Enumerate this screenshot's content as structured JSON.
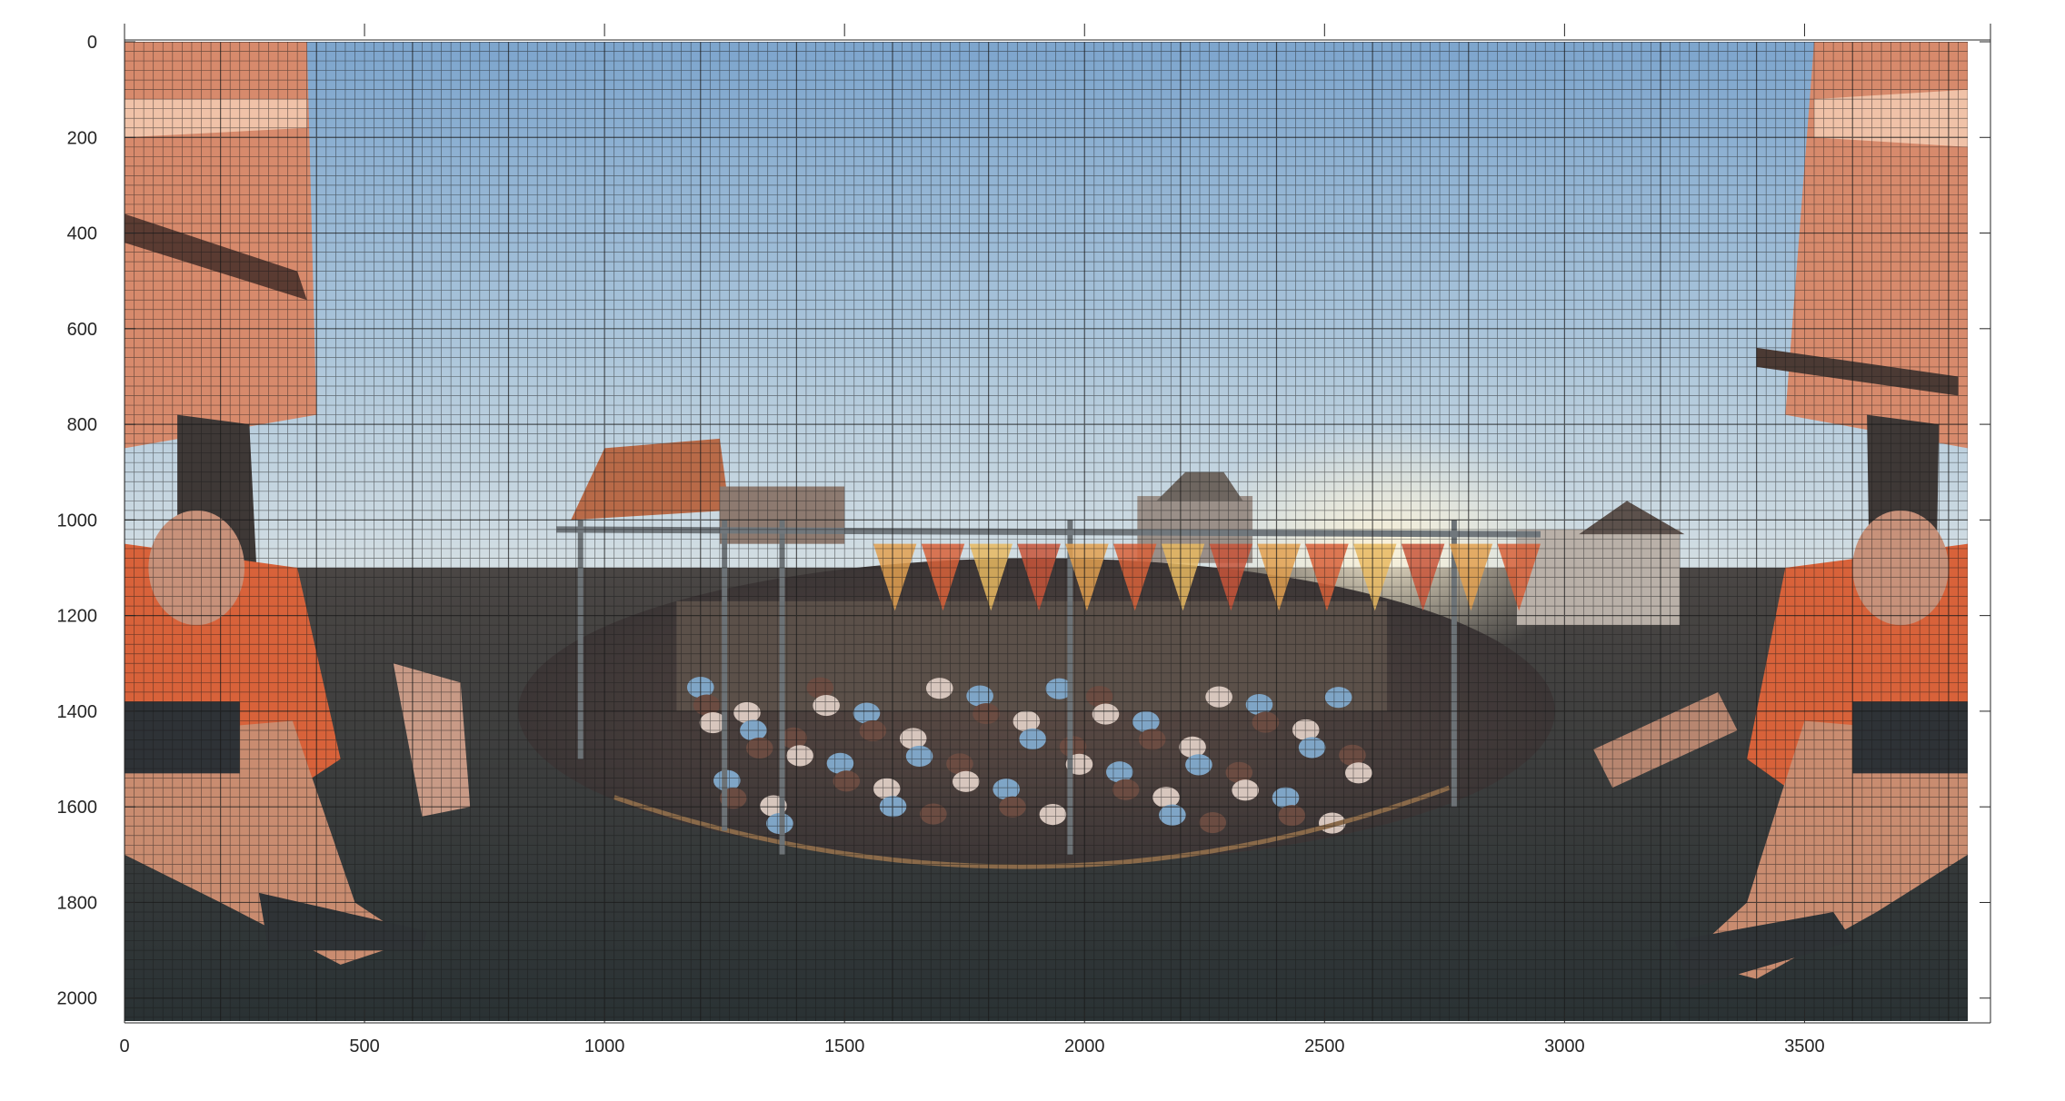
{
  "figure": {
    "kind": "equirectangular 360 photo with a fine measurement grid overlay",
    "scene": "carnival swing ride seen from the rider seat: riders' legs, arms and orange seats at both edges, crowd in a fenced pit at center, string of pennant flags, buildings and blue sky",
    "image_pixel_extent": {
      "x": [
        0,
        3840
      ],
      "y": [
        0,
        2048
      ]
    },
    "grid": "on",
    "x_axis": {
      "position": "bottom",
      "ticks": [
        0,
        500,
        1000,
        1500,
        2000,
        2500,
        3000,
        3500
      ]
    },
    "y_axis": {
      "position": "left",
      "direction": "reversed",
      "ticks": [
        0,
        200,
        400,
        600,
        800,
        1000,
        1200,
        1400,
        1600,
        1800,
        2000
      ]
    },
    "colors": {
      "sky_top": "#7fa6cc",
      "sky_bottom": "#c4d6e2",
      "ground": "#303638",
      "seat_orange": "#d8623a",
      "skin": "#c98c70",
      "grid_line": "#1a1a1a",
      "axis": "#262626"
    }
  }
}
